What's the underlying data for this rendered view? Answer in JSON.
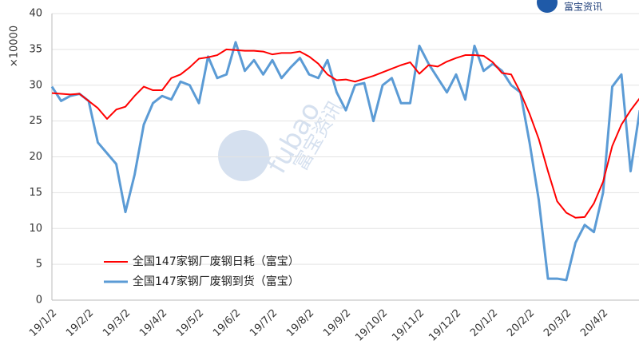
{
  "chart_data": {
    "type": "line",
    "y_axis_label": "×10000",
    "logo": "富宝资讯",
    "watermark": [
      "fubao",
      "富宝资讯"
    ],
    "categories": [
      "19/1/2",
      null,
      null,
      null,
      "19/2/2",
      null,
      null,
      null,
      "19/3/2",
      null,
      null,
      null,
      "19/4/2",
      null,
      null,
      null,
      "19/5/2",
      null,
      null,
      null,
      "19/6/2",
      null,
      null,
      null,
      "19/7/2",
      null,
      null,
      null,
      "19/8/2",
      null,
      null,
      null,
      "19/9/2",
      null,
      null,
      null,
      "19/10/2",
      null,
      null,
      null,
      "19/11/2",
      null,
      null,
      null,
      "19/12/2",
      null,
      null,
      null,
      "20/1/2",
      null,
      null,
      null,
      "20/2/2",
      null,
      null,
      null,
      "20/3/2",
      null,
      null,
      null,
      "20/4/2",
      null,
      null,
      null,
      null
    ],
    "series": [
      {
        "name": "全国147家钢厂废钢日耗（富宝）",
        "color": "#ff0000",
        "values": [
          28.9,
          28.8,
          28.7,
          28.8,
          27.8,
          26.8,
          25.3,
          26.6,
          27,
          28.5,
          29.8,
          29.3,
          29.3,
          31,
          31.5,
          32.5,
          33.7,
          33.9,
          34.2,
          35,
          34.9,
          34.8,
          34.8,
          34.7,
          34.3,
          34.5,
          34.5,
          34.7,
          34,
          33,
          31.5,
          30.7,
          30.8,
          30.5,
          30.9,
          31.3,
          31.8,
          32.3,
          32.8,
          33.2,
          31.6,
          32.8,
          32.6,
          33.3,
          33.8,
          34.2,
          34.2,
          34.1,
          33.2,
          31.7,
          31.5,
          29,
          26,
          22.5,
          18,
          13.8,
          12.2,
          11.5,
          11.6,
          13.5,
          16.5,
          21.5,
          24.5,
          26.5,
          28.2
        ]
      },
      {
        "name": "全国147家钢厂废钢到货（富宝）",
        "color": "#5b9bd5",
        "values": [
          29.8,
          27.8,
          28.5,
          28.8,
          27.8,
          22,
          20.5,
          19,
          12.3,
          17.5,
          24.5,
          27.5,
          28.5,
          28,
          30.5,
          30,
          27.5,
          34,
          31,
          31.5,
          36,
          32,
          33.5,
          31.5,
          33.5,
          31,
          32.5,
          33.8,
          31.5,
          31,
          33.5,
          29,
          26.5,
          30,
          30.3,
          25,
          30,
          31,
          27.5,
          27.5,
          35.5,
          33,
          31,
          29,
          31.5,
          28,
          35.5,
          32,
          33,
          32,
          30,
          29,
          22,
          14,
          3,
          3,
          2.8,
          8,
          10.5,
          9.5,
          15,
          29.8,
          31.5,
          18,
          26.5
        ]
      }
    ],
    "ylim": [
      0,
      40
    ],
    "yticks": [
      0,
      5,
      10,
      15,
      20,
      25,
      30,
      35,
      40
    ],
    "grid": true
  }
}
